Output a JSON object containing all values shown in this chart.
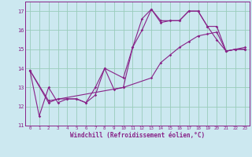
{
  "xlabel": "Windchill (Refroidissement éolien,°C)",
  "background_color": "#cce8f0",
  "grid_color": "#99ccbb",
  "line_color": "#882288",
  "xlim": [
    -0.5,
    23.5
  ],
  "ylim": [
    11,
    17.5
  ],
  "yticks": [
    11,
    12,
    13,
    14,
    15,
    16,
    17
  ],
  "xticks": [
    0,
    1,
    2,
    3,
    4,
    5,
    6,
    7,
    8,
    9,
    10,
    11,
    12,
    13,
    14,
    15,
    16,
    17,
    18,
    19,
    20,
    21,
    22,
    23
  ],
  "line1_x": [
    0,
    1,
    2,
    3,
    4,
    5,
    6,
    7,
    8,
    9,
    10,
    11,
    12,
    13,
    14,
    15,
    16,
    17,
    18,
    19,
    20,
    21,
    22,
    23
  ],
  "line1_y": [
    13.9,
    11.5,
    13.0,
    12.2,
    12.4,
    12.4,
    12.2,
    12.6,
    14.0,
    12.9,
    13.0,
    15.1,
    16.6,
    17.1,
    16.4,
    16.5,
    16.5,
    17.0,
    17.0,
    16.2,
    15.5,
    14.9,
    15.0,
    15.0
  ],
  "line2_x": [
    0,
    2,
    3,
    4,
    5,
    6,
    7,
    8,
    10,
    11,
    12,
    13,
    14,
    15,
    16,
    17,
    18,
    19,
    20,
    21,
    22,
    23
  ],
  "line2_y": [
    13.9,
    12.2,
    12.4,
    12.4,
    12.4,
    12.2,
    13.0,
    14.0,
    13.5,
    15.1,
    16.0,
    17.1,
    16.5,
    16.5,
    16.5,
    17.0,
    17.0,
    16.2,
    16.2,
    14.9,
    15.0,
    15.0
  ],
  "line3_x": [
    0,
    2,
    10,
    13,
    14,
    15,
    16,
    17,
    18,
    19,
    20,
    21,
    22,
    23
  ],
  "line3_y": [
    13.9,
    12.3,
    13.0,
    13.5,
    14.3,
    14.7,
    15.1,
    15.4,
    15.7,
    15.8,
    15.9,
    14.9,
    15.0,
    15.1
  ]
}
